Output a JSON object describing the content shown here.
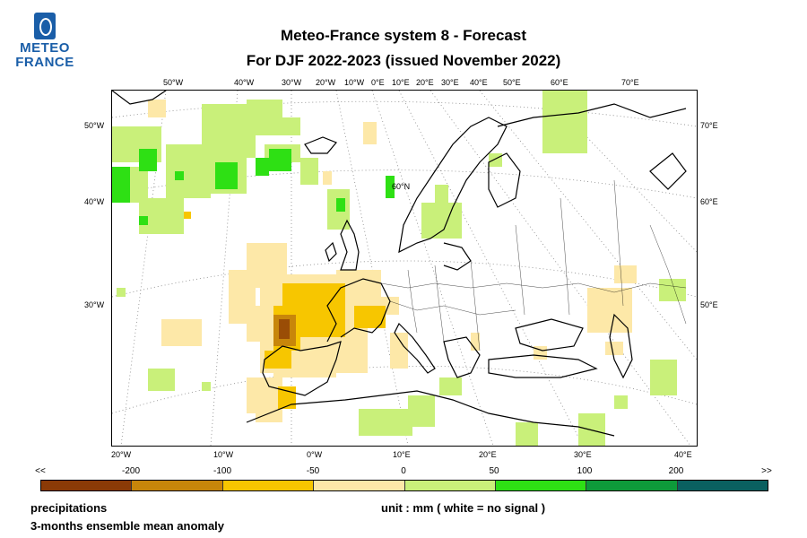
{
  "logo": {
    "line1": "METEO",
    "line2": "FRANCE"
  },
  "title": {
    "line1": "Meteo-France system 8  -  Forecast",
    "line2": "For DJF 2022-2023      (issued November 2022)"
  },
  "map": {
    "top_lon_labels": [
      "50°W",
      "40°W",
      "30°W",
      "20°W",
      "10°W",
      "0°E",
      "10°E",
      "20°E",
      "30°E",
      "40°E",
      "50°E",
      "60°E",
      "70°E"
    ],
    "bottom_lon_labels": [
      "20°W",
      "10°W",
      "0°W",
      "10°E",
      "20°E",
      "30°E",
      "40°E"
    ],
    "left_lat_labels": [
      "50°W",
      "40°W",
      "30°W"
    ],
    "right_lat_labels": [
      "70°E",
      "60°E",
      "50°E"
    ],
    "inner_label": "60°N",
    "land_outline_color": "#000000",
    "gridline_color": "#888888"
  },
  "colorbar": {
    "end_left": "<<",
    "end_right": ">>",
    "tick_labels": [
      "-200",
      "-100",
      "-50",
      "0",
      "50",
      "100",
      "200"
    ],
    "colors": [
      "#8b3a06",
      "#c8860a",
      "#f7c600",
      "#fde8a8",
      "#c9f07a",
      "#2ee014",
      "#0e9a3a",
      "#0a6060"
    ]
  },
  "footer": {
    "variable": "precipitations",
    "description": "3-months ensemble mean anomaly",
    "unit": "unit : mm  ( white = no signal )"
  }
}
